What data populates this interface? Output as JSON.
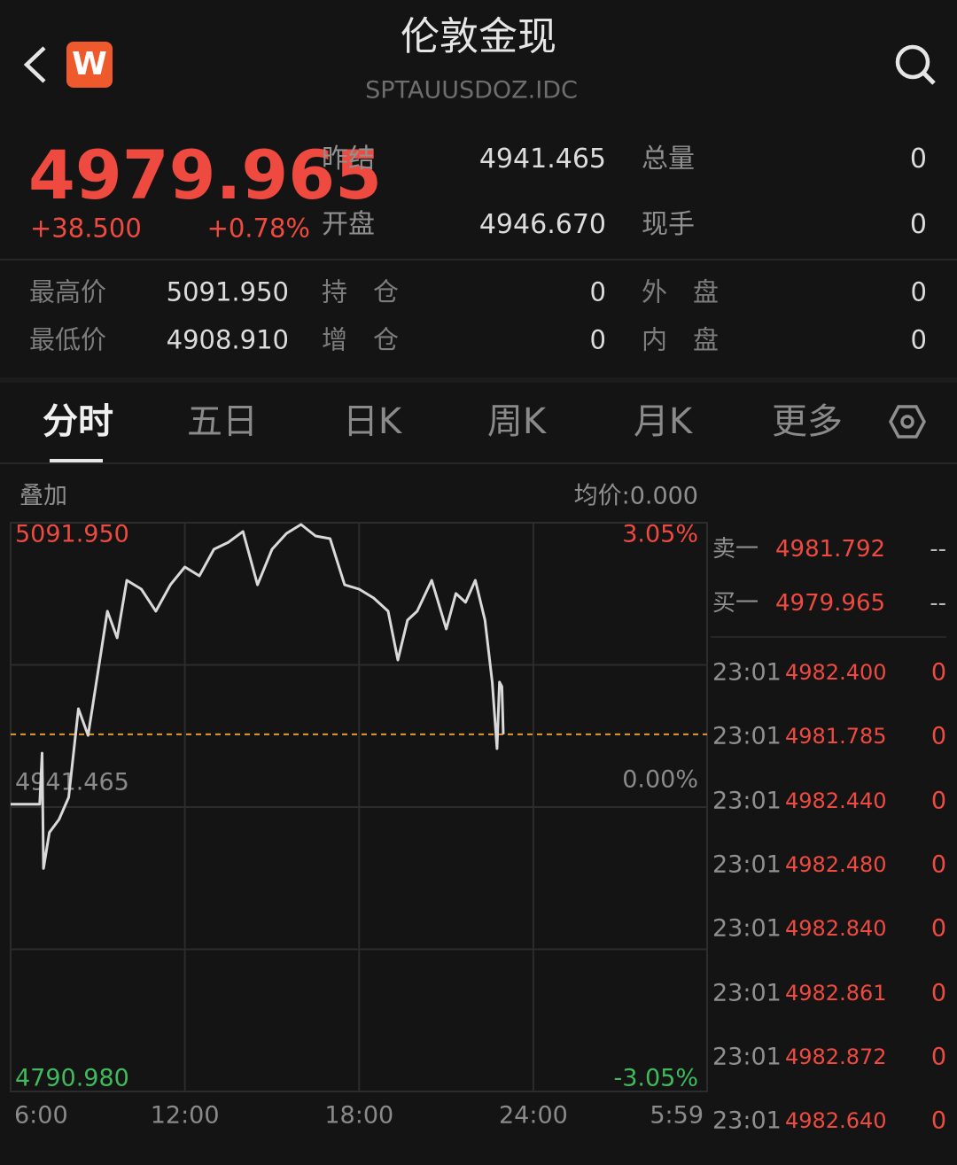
{
  "header": {
    "title": "伦敦金现",
    "code": "SPTAUUSDOZ.IDC",
    "logo": "W"
  },
  "quote": {
    "price": "4979.965",
    "change": "+38.500",
    "change_pct": "+0.78%"
  },
  "stats": [
    [
      {
        "label": "昨结",
        "value": "4941.465"
      },
      {
        "label": "总量",
        "value": "0"
      }
    ],
    [
      {
        "label": "开盘",
        "value": "4946.670"
      },
      {
        "label": "现手",
        "value": "0"
      }
    ]
  ],
  "details": [
    [
      {
        "label": "最高价",
        "value": "5091.950"
      },
      {
        "label": "持　仓",
        "value": "0"
      },
      {
        "label": "外　盘",
        "value": "0"
      }
    ],
    [
      {
        "label": "最低价",
        "value": "4908.910"
      },
      {
        "label": "增　仓",
        "value": "0"
      },
      {
        "label": "内　盘",
        "value": "0"
      }
    ]
  ],
  "tabs": [
    "分时",
    "五日",
    "日K",
    "周K",
    "月K",
    "更多"
  ],
  "overlay_label": "叠加",
  "avg_price": "均价:0.000",
  "chart_data": {
    "type": "line",
    "x": [
      "6:00",
      "6:50",
      "7:00",
      "7:05",
      "7:08",
      "7:20",
      "7:40",
      "8:00",
      "8:20",
      "8:40",
      "9:00",
      "9:20",
      "9:40",
      "10:00",
      "10:30",
      "11:00",
      "11:30",
      "12:00",
      "12:30",
      "13:00",
      "13:30",
      "14:00",
      "14:30",
      "15:00",
      "15:30",
      "16:00",
      "16:30",
      "17:00",
      "17:30",
      "18:00",
      "18:30",
      "19:00",
      "19:20",
      "19:40",
      "20:00",
      "20:30",
      "21:00",
      "21:20",
      "21:40",
      "22:00",
      "22:20",
      "22:35",
      "22:45",
      "22:50",
      "22:55",
      "22:58"
    ],
    "values": [
      4943.0,
      4943.0,
      4943.0,
      4970.0,
      4909.0,
      4928.0,
      4934.9,
      4946.6,
      4993.5,
      4979.4,
      5012.2,
      5045.1,
      5031.0,
      5061.5,
      5056.8,
      5045.1,
      5059.1,
      5068.5,
      5063.8,
      5077.9,
      5081.6,
      5087.3,
      5059.1,
      5077.9,
      5086.3,
      5091.0,
      5084.9,
      5083.5,
      5059.1,
      5056.8,
      5052.1,
      5045.1,
      5019.3,
      5040.4,
      5045.1,
      5061.5,
      5035.7,
      5054.5,
      5049.8,
      5061.5,
      5040.4,
      5007.6,
      4972.4,
      5007.6,
      5005.2,
      4980.0
    ],
    "color": "#d9d9d9",
    "reference_line": 4979.965,
    "reference_color": "#e39a2c",
    "ylim": [
      4790.98,
      5091.95
    ],
    "yticks": [
      {
        "value": 5091.95,
        "label": "5091.950"
      },
      {
        "value": 4941.465,
        "label": "4941.465"
      },
      {
        "value": 4790.98,
        "label": "4790.980"
      }
    ],
    "ytick_colors": [
      "#ef4a3f",
      "#8a8a8a",
      "#3fba5c"
    ],
    "y2lim": [
      -3.05,
      3.05
    ],
    "y2ticks": [
      {
        "value": 3.05,
        "label": "3.05%"
      },
      {
        "value": 0,
        "label": "0.00%"
      },
      {
        "value": -3.05,
        "label": "-3.05%"
      }
    ],
    "xticks": [
      "6:00",
      "12:00",
      "18:00",
      "24:00",
      "5:59"
    ],
    "grid": true
  },
  "order_book": [
    {
      "side": "卖一",
      "price": "4981.792",
      "volume": "--"
    },
    {
      "side": "买一",
      "price": "4979.965",
      "volume": "--"
    }
  ],
  "trades": [
    {
      "time": "23:01",
      "price": "4982.400",
      "volume": "0"
    },
    {
      "time": "23:01",
      "price": "4981.785",
      "volume": "0"
    },
    {
      "time": "23:01",
      "price": "4982.440",
      "volume": "0"
    },
    {
      "time": "23:01",
      "price": "4982.480",
      "volume": "0"
    },
    {
      "time": "23:01",
      "price": "4982.840",
      "volume": "0"
    },
    {
      "time": "23:01",
      "price": "4982.861",
      "volume": "0"
    },
    {
      "time": "23:01",
      "price": "4982.872",
      "volume": "0"
    },
    {
      "time": "23:01",
      "price": "4982.640",
      "volume": "0"
    }
  ]
}
